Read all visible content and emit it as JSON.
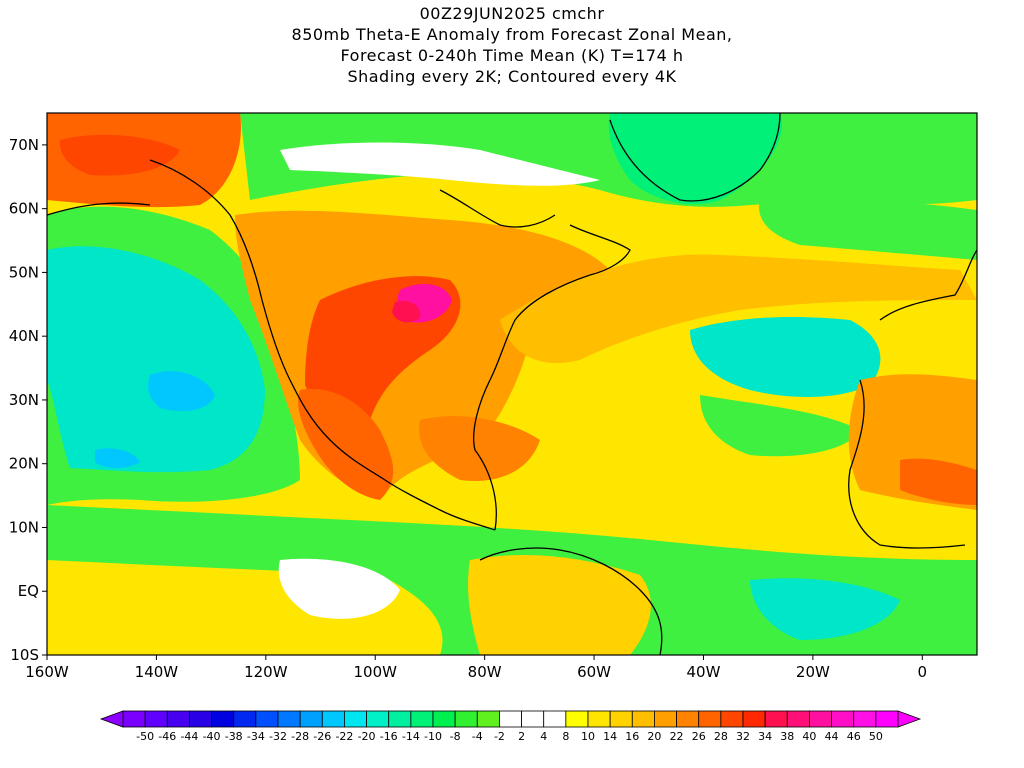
{
  "title": {
    "line1": "00Z29JUN2025 cmchr",
    "line2": "850mb Theta-E Anomaly from Forecast Zonal Mean,",
    "line3": "Forecast 0-240h Time Mean (K) T=174 h",
    "line4": "Shading every 2K; Contoured every 4K"
  },
  "map": {
    "lon_range": [
      -160,
      10
    ],
    "lat_range": [
      -10,
      75
    ],
    "lat_labels": [
      "70N",
      "60N",
      "50N",
      "40N",
      "30N",
      "20N",
      "10N",
      "EQ",
      "10S"
    ],
    "lat_values": [
      70,
      60,
      50,
      40,
      30,
      20,
      10,
      0,
      -10
    ],
    "lon_labels": [
      "160W",
      "140W",
      "120W",
      "100W",
      "80W",
      "60W",
      "40W",
      "20W",
      "0"
    ],
    "lon_values": [
      -160,
      -140,
      -120,
      -100,
      -80,
      -60,
      -40,
      -20,
      0
    ],
    "field": "850mb Theta-E Anomaly",
    "units": "K"
  },
  "colorbar": {
    "labels": [
      "-50",
      "-46",
      "-44",
      "-40",
      "-38",
      "-34",
      "-32",
      "-28",
      "-26",
      "-22",
      "-20",
      "-16",
      "-14",
      "-10",
      "-8",
      "-4",
      "-2",
      "2",
      "4",
      "8",
      "10",
      "14",
      "16",
      "20",
      "22",
      "26",
      "28",
      "32",
      "34",
      "38",
      "40",
      "44",
      "46",
      "50"
    ],
    "colors": [
      "#7a00ff",
      "#6000ff",
      "#4800f0",
      "#2a00e6",
      "#0000e0",
      "#0028f0",
      "#0050ff",
      "#0078ff",
      "#00a0ff",
      "#00c8ff",
      "#00e6f0",
      "#00f0c8",
      "#00f0a0",
      "#00f078",
      "#00f050",
      "#30f030",
      "#60f020",
      "#ffffff",
      "#ffffff",
      "#ffffff",
      "#ffff00",
      "#ffe600",
      "#ffd200",
      "#ffbe00",
      "#ffa000",
      "#ff8200",
      "#ff6400",
      "#ff4600",
      "#ff2800",
      "#ff1050",
      "#ff1078",
      "#ff10a0",
      "#ff10c8",
      "#ff10e6",
      "#ff00ff"
    ]
  }
}
